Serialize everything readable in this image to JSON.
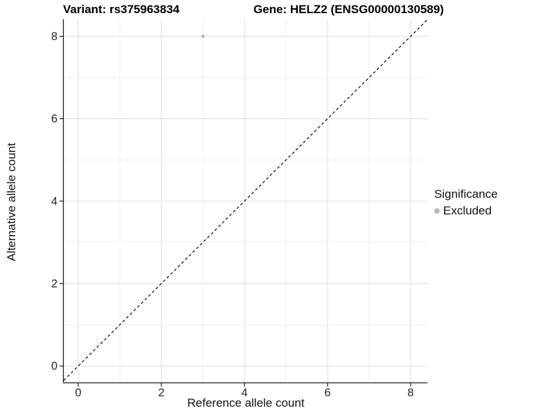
{
  "colors": {
    "background": "#ffffff",
    "grid_major": "#e2e2e2",
    "grid_minor": "#efefef",
    "axis_line": "#1a1a1a",
    "tick_text": "#262626",
    "identity_line": "#000000",
    "point_gray": "#b8b8b8"
  },
  "chart_data": {
    "type": "scatter",
    "title_left": "Variant: rs375963834",
    "title_right": "Gene: HELZ2 (ENSG00000130589)",
    "xlabel": "Reference allele count",
    "ylabel": "Alternative allele count",
    "xlim": [
      -0.35,
      8.4
    ],
    "ylim": [
      -0.4,
      8.41
    ],
    "xticks": [
      0,
      2,
      4,
      6,
      8
    ],
    "yticks": [
      0,
      2,
      4,
      6,
      8
    ],
    "xminor": [
      1,
      3,
      5,
      7
    ],
    "yminor": [
      1,
      3,
      5,
      7
    ],
    "grid": true,
    "identity_line": {
      "style": "dashed",
      "x1": -0.35,
      "y1": -0.35,
      "x2": 8.4,
      "y2": 8.4
    },
    "series": [
      {
        "name": "Excluded",
        "color": "#b8b8b8",
        "point_radius": 2.4,
        "points": [
          {
            "x": 3,
            "y": 8
          }
        ]
      }
    ],
    "legend": {
      "title": "Significance",
      "position": "right",
      "items": [
        {
          "label": "Excluded",
          "color": "#b8b8b8"
        }
      ]
    }
  }
}
